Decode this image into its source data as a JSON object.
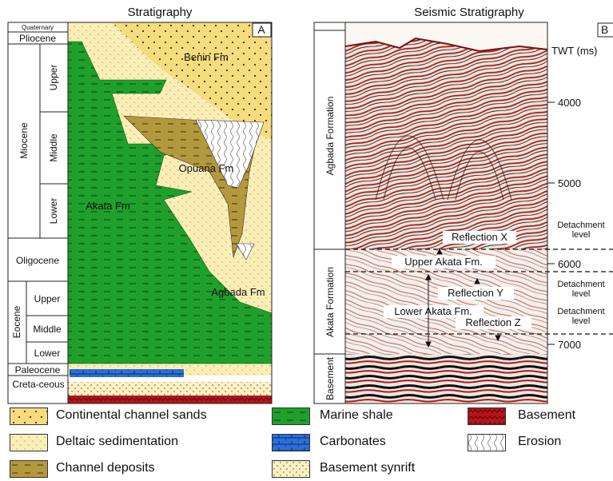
{
  "left_panel": {
    "title": "Stratigraphy",
    "label": "A",
    "ages": {
      "quaternary": "Quaternary",
      "pliocene": "Pliocene",
      "miocene": "Miocene",
      "miocene_sub": [
        "Upper",
        "Middle",
        "Lower"
      ],
      "oligocene": "Oligocene",
      "eocene": "Eocene",
      "eocene_sub": [
        "Upper",
        "Middle",
        "Lower"
      ],
      "paleocene": "Paleocene",
      "cretaceous": "Creta-ceous"
    },
    "formations": [
      "Benin Fm",
      "Opuana Fm",
      "Akata Fm",
      "Agbada Fm"
    ]
  },
  "right_panel": {
    "title": "Seismic Stratigraphy",
    "label": "B",
    "formations": [
      "Agbada Formation",
      "Akata Formation",
      "Basement"
    ],
    "axis_title": "TWT (ms)",
    "ticks": [
      4000,
      5000,
      6000,
      7000
    ],
    "detachment_labels": [
      "Detachment level",
      "Detachment level",
      "Detachment level"
    ],
    "annotations": [
      "Reflection X",
      "Upper Akata Fm.",
      "Reflection Y",
      "Lower Akata Fm.",
      "Reflection Z"
    ]
  },
  "legend": [
    "Continental channel sands",
    "Deltaic sedimentation",
    "Channel deposits",
    "Marine shale",
    "Carbonates",
    "Basement synrift",
    "Basement",
    "Erosion"
  ]
}
